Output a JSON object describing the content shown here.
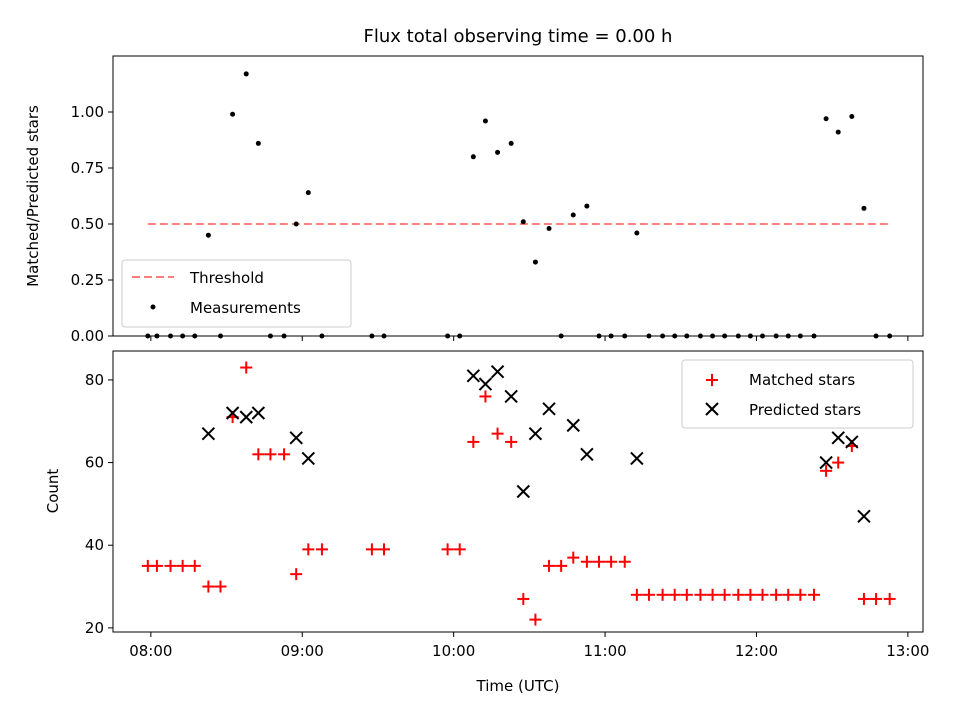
{
  "title": "Flux total observing time = 0.00 h",
  "xlabel": "Time (UTC)",
  "x_ticks": [
    "08:00",
    "09:00",
    "10:00",
    "11:00",
    "12:00",
    "13:00"
  ],
  "chart_data": [
    {
      "type": "scatter",
      "title": "Flux total observing time = 0.00 h",
      "xlabel": "Time (UTC)",
      "ylabel": "Matched/Predicted stars",
      "x_unit": "UTC time (hours)",
      "xlim": [
        7.75,
        13.1
      ],
      "ylim": [
        0,
        1.25
      ],
      "y_ticks": [
        "0.00",
        "0.25",
        "0.50",
        "0.75",
        "1.00"
      ],
      "grid": false,
      "legend_position": "lower-left",
      "threshold": {
        "name": "Threshold",
        "y": 0.5,
        "x_range": [
          7.98,
          12.88
        ],
        "color": "#ff7f7f"
      },
      "series": [
        {
          "name": "Measurements",
          "color": "#000000",
          "marker": "dot",
          "x": [
            7.98,
            8.04,
            8.13,
            8.21,
            8.29,
            8.38,
            8.46,
            8.54,
            8.63,
            8.71,
            8.79,
            8.88,
            8.96,
            9.04,
            9.13,
            9.46,
            9.54,
            9.96,
            10.04,
            10.13,
            10.21,
            10.29,
            10.38,
            10.46,
            10.54,
            10.63,
            10.71,
            10.79,
            10.88,
            10.96,
            11.04,
            11.13,
            11.21,
            11.29,
            11.38,
            11.46,
            11.54,
            11.63,
            11.71,
            11.79,
            11.88,
            11.96,
            12.04,
            12.13,
            12.21,
            12.29,
            12.38,
            12.46,
            12.54,
            12.63,
            12.71,
            12.79,
            12.88
          ],
          "y": [
            0,
            0,
            0,
            0,
            0,
            0.45,
            0,
            0.99,
            1.17,
            0.86,
            0,
            0,
            0.5,
            0.64,
            0,
            0,
            0,
            0,
            0,
            0.8,
            0.96,
            0.82,
            0.86,
            0.51,
            0.33,
            0.48,
            0,
            0.54,
            0.58,
            0,
            0,
            0,
            0.46,
            0,
            0,
            0,
            0,
            0,
            0,
            0,
            0,
            0,
            0,
            0,
            0,
            0,
            0,
            0.97,
            0.91,
            0.98,
            0.57,
            0,
            0
          ]
        }
      ]
    },
    {
      "type": "scatter",
      "xlabel": "Time (UTC)",
      "ylabel": "Count",
      "x_unit": "UTC time (hours)",
      "xlim": [
        7.75,
        13.1
      ],
      "ylim": [
        19,
        87
      ],
      "y_ticks": [
        "20",
        "40",
        "60",
        "80"
      ],
      "grid": false,
      "legend_position": "top-right",
      "series": [
        {
          "name": "Matched stars",
          "color": "#ff0000",
          "marker": "plus",
          "x": [
            7.98,
            8.04,
            8.13,
            8.21,
            8.29,
            8.38,
            8.46,
            8.54,
            8.63,
            8.71,
            8.79,
            8.88,
            8.96,
            9.04,
            9.13,
            9.46,
            9.54,
            9.96,
            10.04,
            10.13,
            10.21,
            10.29,
            10.38,
            10.46,
            10.54,
            10.63,
            10.71,
            10.79,
            10.88,
            10.96,
            11.04,
            11.13,
            11.21,
            11.29,
            11.38,
            11.46,
            11.54,
            11.63,
            11.71,
            11.79,
            11.88,
            11.96,
            12.04,
            12.13,
            12.21,
            12.29,
            12.38,
            12.46,
            12.54,
            12.63,
            12.71,
            12.79,
            12.88
          ],
          "y": [
            35,
            35,
            35,
            35,
            35,
            30,
            30,
            71,
            83,
            62,
            62,
            62,
            33,
            39,
            39,
            39,
            39,
            39,
            39,
            65,
            76,
            67,
            65,
            27,
            22,
            35,
            35,
            37,
            36,
            36,
            36,
            36,
            28,
            28,
            28,
            28,
            28,
            28,
            28,
            28,
            28,
            28,
            28,
            28,
            28,
            28,
            28,
            58,
            60,
            64,
            27,
            27,
            27
          ]
        },
        {
          "name": "Predicted stars",
          "color": "#000000",
          "marker": "x",
          "x": [
            8.38,
            8.54,
            8.63,
            8.71,
            8.96,
            9.04,
            10.13,
            10.21,
            10.29,
            10.38,
            10.46,
            10.54,
            10.63,
            10.79,
            10.88,
            11.21,
            12.46,
            12.54,
            12.63,
            12.71
          ],
          "y": [
            67,
            72,
            71,
            72,
            66,
            61,
            81,
            79,
            82,
            76,
            53,
            67,
            73,
            69,
            62,
            61,
            60,
            66,
            65,
            47
          ]
        }
      ]
    }
  ]
}
